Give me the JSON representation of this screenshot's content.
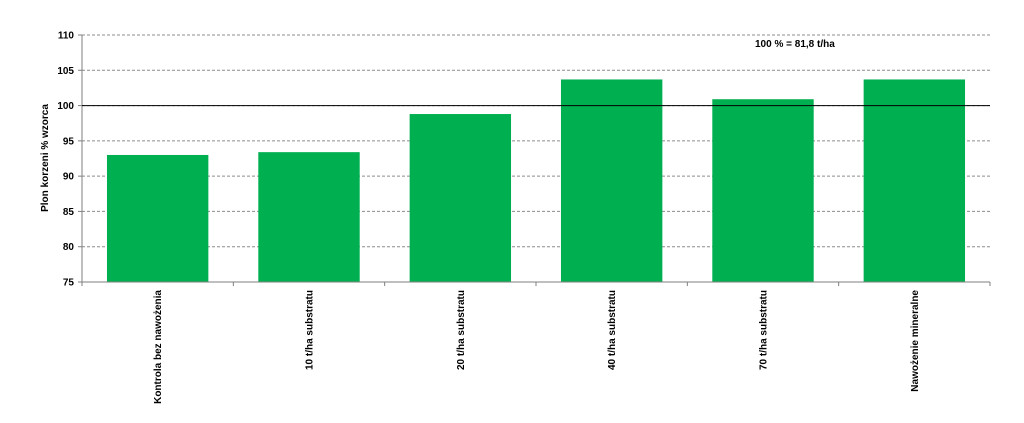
{
  "chart_data": {
    "type": "bar",
    "categories": [
      "Kontrola bez nawożenia",
      "10 t/ha substratu",
      "20 t/ha substratu",
      "40 t/ha substratu",
      "70 t/ha substratu",
      "Nawożenie mineralne"
    ],
    "values": [
      93.0,
      93.4,
      98.8,
      103.7,
      100.9,
      103.7
    ],
    "ylabel": "Plon korzeni % wzorca",
    "xlabel": "",
    "ylim": [
      75,
      110
    ],
    "yticks": [
      75,
      80,
      85,
      90,
      95,
      100,
      105,
      110
    ],
    "reference_line": 100,
    "annotation": "100 % = 81,8 t/ha",
    "grid": "horizontal dashed",
    "bar_color": "#00b050"
  }
}
